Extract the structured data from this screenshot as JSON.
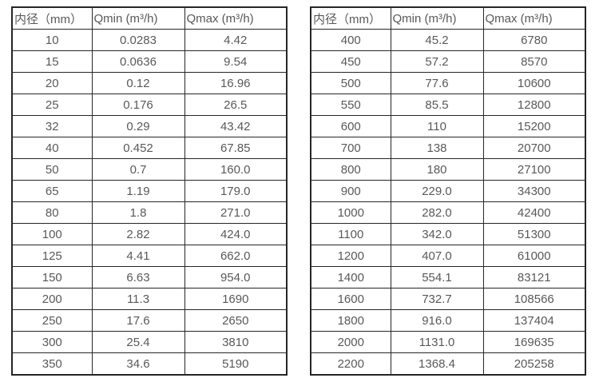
{
  "colors": {
    "background": "#ffffff",
    "border": "#262626",
    "text": "#595959"
  },
  "tables": [
    {
      "name": "flow-table-left",
      "headers": [
        "内径（mm）",
        "Qmin (m³/h)",
        "Qmax (m³/h)"
      ],
      "rows": [
        [
          "10",
          "0.0283",
          "4.42"
        ],
        [
          "15",
          "0.0636",
          "9.54"
        ],
        [
          "20",
          "0.12",
          "16.96"
        ],
        [
          "25",
          "0.176",
          "26.5"
        ],
        [
          "32",
          "0.29",
          "43.42"
        ],
        [
          "40",
          "0.452",
          "67.85"
        ],
        [
          "50",
          "0.7",
          "160.0"
        ],
        [
          "65",
          "1.19",
          "179.0"
        ],
        [
          "80",
          "1.8",
          "271.0"
        ],
        [
          "100",
          "2.82",
          "424.0"
        ],
        [
          "125",
          "4.41",
          "662.0"
        ],
        [
          "150",
          "6.63",
          "954.0"
        ],
        [
          "200",
          "11.3",
          "1690"
        ],
        [
          "250",
          "17.6",
          "2650"
        ],
        [
          "300",
          "25.4",
          "3810"
        ],
        [
          "350",
          "34.6",
          "5190"
        ]
      ]
    },
    {
      "name": "flow-table-right",
      "headers": [
        "内径（mm）",
        "Qmin (m³/h)",
        "Qmax (m³/h)"
      ],
      "rows": [
        [
          "400",
          "45.2",
          "6780"
        ],
        [
          "450",
          "57.2",
          "8570"
        ],
        [
          "500",
          "77.6",
          "10600"
        ],
        [
          "550",
          "85.5",
          "12800"
        ],
        [
          "600",
          "110",
          "15200"
        ],
        [
          "700",
          "138",
          "20700"
        ],
        [
          "800",
          "180",
          "27100"
        ],
        [
          "900",
          "229.0",
          "34300"
        ],
        [
          "1000",
          "282.0",
          "42400"
        ],
        [
          "1100",
          "342.0",
          "51300"
        ],
        [
          "1200",
          "407.0",
          "61000"
        ],
        [
          "1400",
          "554.1",
          "83121"
        ],
        [
          "1600",
          "732.7",
          "108566"
        ],
        [
          "1800",
          "916.0",
          "137404"
        ],
        [
          "2000",
          "1131.0",
          "169635"
        ],
        [
          "2200",
          "1368.4",
          "205258"
        ]
      ]
    }
  ]
}
